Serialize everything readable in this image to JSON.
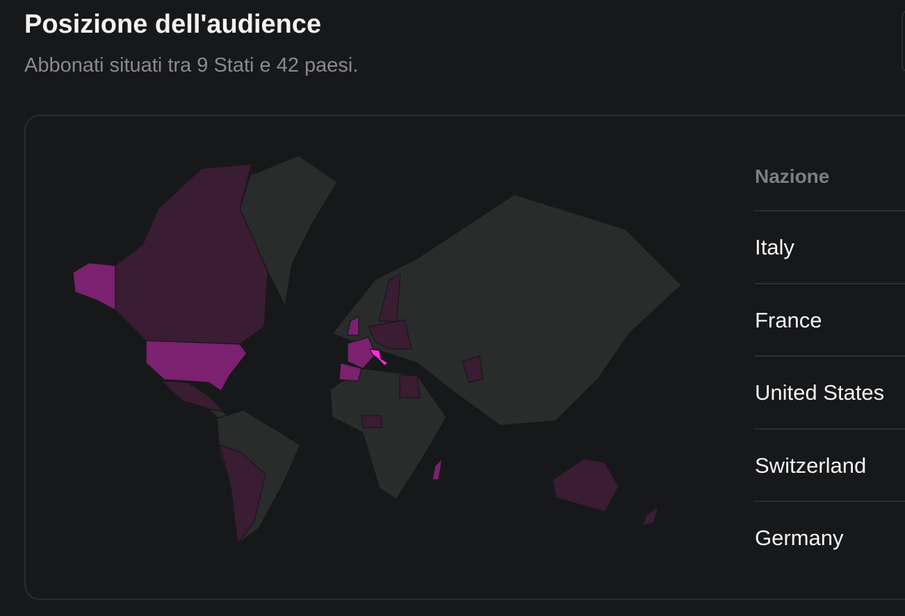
{
  "header": {
    "title": "Posizione dell'audience",
    "subtitle": "Abbonati situati tra 9 Stati e 42 paesi."
  },
  "table": {
    "header": "Nazione",
    "rows": [
      "Italy",
      "France",
      "United States",
      "Switzerland",
      "Germany"
    ]
  }
}
